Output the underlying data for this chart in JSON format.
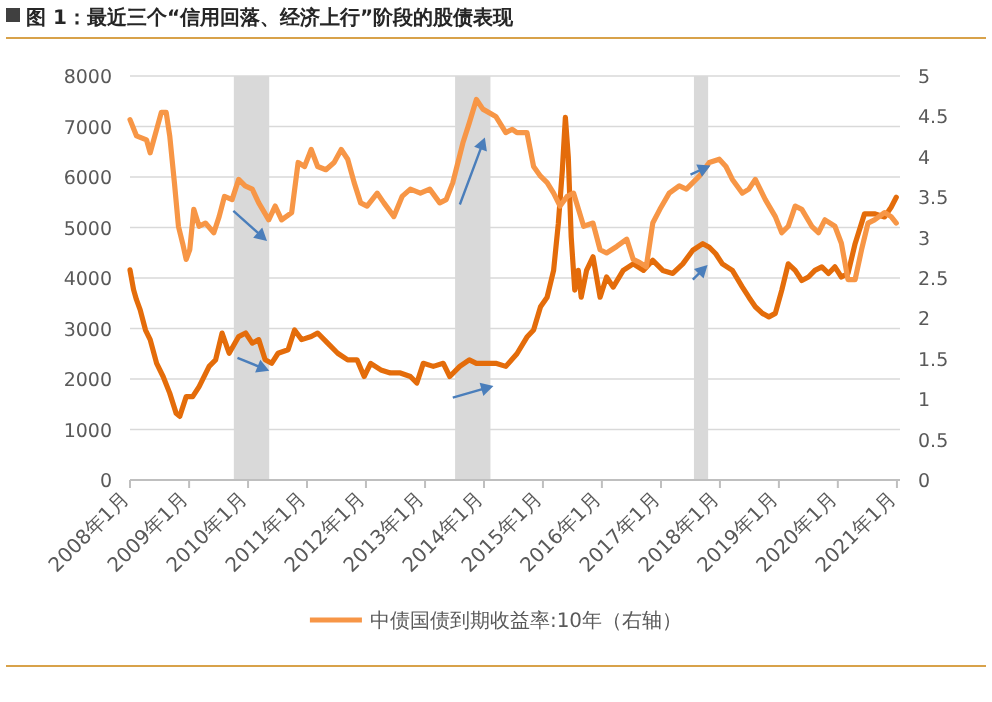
{
  "chart_data": {
    "type": "line",
    "title": "图 1：最近三个“信用回落、经济上行”阶段的股债表现",
    "xlim": [
      "2008-01-01",
      "2021-01-20"
    ],
    "xticks": [
      {
        "value": "2008-01",
        "label": "2008年1月"
      },
      {
        "value": "2009-01",
        "label": "2009年1月"
      },
      {
        "value": "2010-01",
        "label": "2010年1月"
      },
      {
        "value": "2011-01",
        "label": "2011年1月"
      },
      {
        "value": "2012-01",
        "label": "2012年1月"
      },
      {
        "value": "2013-01",
        "label": "2013年1月"
      },
      {
        "value": "2014-01",
        "label": "2014年1月"
      },
      {
        "value": "2015-01",
        "label": "2015年1月"
      },
      {
        "value": "2016-01",
        "label": "2016年1月"
      },
      {
        "value": "2017-01",
        "label": "2017年1月"
      },
      {
        "value": "2018-01",
        "label": "2018年1月"
      },
      {
        "value": "2019-01",
        "label": "2019年1月"
      },
      {
        "value": "2020-01",
        "label": "2020年1月"
      },
      {
        "value": "2021-01",
        "label": "2021年1月"
      }
    ],
    "ylim": [
      0,
      8000
    ],
    "yticks": [
      0,
      1000,
      2000,
      3000,
      4000,
      5000,
      6000,
      7000,
      8000
    ],
    "y2lim": [
      0,
      5
    ],
    "y2ticks": [
      0,
      0.5,
      1,
      1.5,
      2,
      2.5,
      3,
      3.5,
      4,
      4.5,
      5
    ],
    "grid": "y",
    "legend": "bottom",
    "line_style": "solid",
    "bands": [
      {
        "axis": "x",
        "from": "2009-10-05",
        "to": "2010-05-12",
        "color": "#d9d9d9"
      },
      {
        "axis": "x",
        "from": "2013-07-06",
        "to": "2014-02-10",
        "color": "#d9d9d9"
      },
      {
        "axis": "x",
        "from": "2017-07-24",
        "to": "2017-10-20",
        "color": "#d9d9d9"
      }
    ],
    "series": [
      {
        "color": "#e46c0a",
        "x": [
          "2008-01-01",
          "2008-01-23",
          "2008-02-10",
          "2008-03-04",
          "2008-04-06",
          "2008-05-05",
          "2008-06-14",
          "2008-07-24",
          "2008-09-03",
          "2008-10-13",
          "2008-11-04",
          "2008-12-14",
          "2009-01-23",
          "2009-03-04",
          "2009-05-05",
          "2009-06-14",
          "2009-07-24",
          "2009-09-06",
          "2009-11-04",
          "2009-12-17",
          "2010-01-27",
          "2010-03-08",
          "2010-04-17",
          "2010-05-27",
          "2010-07-06",
          "2010-09-06",
          "2010-10-16",
          "2010-11-29",
          "2011-01-27",
          "2011-03-08",
          "2011-05-09",
          "2011-07-10",
          "2011-09-10",
          "2011-11-07",
          "2011-12-21",
          "2012-01-30",
          "2012-04-02",
          "2012-05-31",
          "2012-08-01",
          "2012-10-02",
          "2012-11-11",
          "2012-12-21",
          "2013-02-21",
          "2013-04-24",
          "2013-06-03",
          "2013-08-04",
          "2013-10-02",
          "2013-11-15",
          "2014-01-12",
          "2014-03-15",
          "2014-05-16",
          "2014-07-24",
          "2014-09-24",
          "2014-11-04",
          "2014-12-17",
          "2015-01-27",
          "2015-03-08",
          "2015-04-06",
          "2015-05-01",
          "2015-05-20",
          "2015-06-07",
          "2015-06-25",
          "2015-07-17",
          "2015-08-08",
          "2015-08-26",
          "2015-09-28",
          "2015-11-07",
          "2015-12-21",
          "2016-01-30",
          "2016-03-11",
          "2016-05-12",
          "2016-07-13",
          "2016-09-14",
          "2016-11-11",
          "2017-01-12",
          "2017-03-15",
          "2017-05-16",
          "2017-07-17",
          "2017-09-17",
          "2017-10-27",
          "2017-12-06",
          "2018-01-16",
          "2018-03-19",
          "2018-05-20",
          "2018-06-29",
          "2018-08-08",
          "2018-09-21",
          "2018-10-31",
          "2018-12-10",
          "2019-01-19",
          "2019-02-28",
          "2019-04-12",
          "2019-05-23",
          "2019-07-03",
          "2019-08-12",
          "2019-09-24",
          "2019-11-04",
          "2019-12-14",
          "2020-01-23",
          "2020-03-04",
          "2020-04-17",
          "2020-06-14",
          "2020-08-15",
          "2020-10-16",
          "2020-11-26",
          "2020-12-28"
        ],
        "values": [
          4160,
          3770,
          3570,
          3370,
          2970,
          2780,
          2310,
          2050,
          1720,
          1320,
          1260,
          1650,
          1650,
          1850,
          2250,
          2380,
          2910,
          2510,
          2840,
          2910,
          2710,
          2780,
          2380,
          2310,
          2510,
          2580,
          2970,
          2780,
          2840,
          2910,
          2710,
          2510,
          2380,
          2380,
          2050,
          2310,
          2180,
          2120,
          2120,
          2050,
          1920,
          2310,
          2250,
          2310,
          2050,
          2250,
          2380,
          2310,
          2310,
          2310,
          2250,
          2500,
          2830,
          2970,
          3430,
          3620,
          4150,
          5070,
          6130,
          7180,
          6390,
          4810,
          3760,
          4150,
          3620,
          4150,
          4420,
          3620,
          4020,
          3820,
          4150,
          4280,
          4150,
          4350,
          4150,
          4090,
          4280,
          4550,
          4680,
          4610,
          4480,
          4280,
          4150,
          3820,
          3620,
          3430,
          3300,
          3230,
          3300,
          3760,
          4280,
          4150,
          3950,
          4020,
          4150,
          4220,
          4090,
          4220,
          4020,
          4090,
          4680,
          5270,
          5270,
          5210,
          5400,
          5600
        ]
      },
      {
        "name": "中债国债到期收益率:10年（右轴）",
        "color": "#f79646",
        "axis": "y2",
        "x": [
          "2008-01-01",
          "2008-02-10",
          "2008-04-12",
          "2008-05-05",
          "2008-06-14",
          "2008-07-13",
          "2008-08-12",
          "2008-09-03",
          "2008-10-02",
          "2008-10-27",
          "2008-11-22",
          "2008-12-14",
          "2009-01-05",
          "2009-01-30",
          "2009-03-04",
          "2009-04-12",
          "2009-06-03",
          "2009-07-06",
          "2009-08-08",
          "2009-09-24",
          "2009-11-04",
          "2009-12-14",
          "2010-01-27",
          "2010-03-08",
          "2010-05-09",
          "2010-06-18",
          "2010-07-28",
          "2010-09-28",
          "2010-11-07",
          "2010-12-17",
          "2011-01-27",
          "2011-03-08",
          "2011-04-28",
          "2011-06-18",
          "2011-08-01",
          "2011-09-10",
          "2011-10-20",
          "2011-11-29",
          "2012-01-08",
          "2012-03-11",
          "2012-04-21",
          "2012-06-22",
          "2012-08-12",
          "2012-10-02",
          "2012-12-03",
          "2013-01-30",
          "2013-04-02",
          "2013-05-12",
          "2013-06-22",
          "2013-08-23",
          "2013-10-02",
          "2013-11-15",
          "2013-12-25",
          "2014-03-15",
          "2014-05-16",
          "2014-06-25",
          "2014-07-24",
          "2014-09-24",
          "2014-11-04",
          "2014-12-17",
          "2015-01-27",
          "2015-03-08",
          "2015-04-17",
          "2015-05-31",
          "2015-07-10",
          "2015-09-10",
          "2015-11-07",
          "2015-12-21",
          "2016-01-30",
          "2016-04-02",
          "2016-06-03",
          "2016-07-13",
          "2016-08-23",
          "2016-10-02",
          "2016-11-11",
          "2016-12-25",
          "2017-02-21",
          "2017-04-24",
          "2017-06-07",
          "2017-08-26",
          "2017-10-27",
          "2017-12-28",
          "2018-02-07",
          "2018-03-19",
          "2018-05-20",
          "2018-06-29",
          "2018-08-08",
          "2018-10-09",
          "2018-12-10",
          "2019-01-19",
          "2019-02-28",
          "2019-04-12",
          "2019-05-23",
          "2019-07-24",
          "2019-09-03",
          "2019-10-13",
          "2019-12-14",
          "2020-01-23",
          "2020-03-04",
          "2020-04-17",
          "2020-05-27",
          "2020-07-06",
          "2020-08-15",
          "2020-10-16",
          "2020-11-26",
          "2020-12-28"
        ],
        "values": [
          4.46,
          4.26,
          4.21,
          4.05,
          4.34,
          4.55,
          4.55,
          4.26,
          3.68,
          3.14,
          2.93,
          2.73,
          2.85,
          3.35,
          3.14,
          3.18,
          3.06,
          3.26,
          3.51,
          3.47,
          3.72,
          3.64,
          3.6,
          3.43,
          3.22,
          3.39,
          3.22,
          3.31,
          3.93,
          3.88,
          4.09,
          3.88,
          3.84,
          3.93,
          4.09,
          3.97,
          3.68,
          3.43,
          3.39,
          3.55,
          3.43,
          3.26,
          3.51,
          3.6,
          3.55,
          3.6,
          3.43,
          3.47,
          3.68,
          4.17,
          4.42,
          4.71,
          4.59,
          4.5,
          4.3,
          4.34,
          4.3,
          4.3,
          3.88,
          3.76,
          3.68,
          3.55,
          3.39,
          3.51,
          3.55,
          3.14,
          3.18,
          2.85,
          2.81,
          2.89,
          2.98,
          2.73,
          2.69,
          2.64,
          3.18,
          3.35,
          3.55,
          3.64,
          3.6,
          3.76,
          3.93,
          3.97,
          3.88,
          3.72,
          3.55,
          3.6,
          3.72,
          3.47,
          3.26,
          3.06,
          3.14,
          3.39,
          3.35,
          3.14,
          3.06,
          3.22,
          3.14,
          2.93,
          2.48,
          2.48,
          2.85,
          3.18,
          3.22,
          3.31,
          3.26,
          3.18
        ]
      }
    ]
  }
}
